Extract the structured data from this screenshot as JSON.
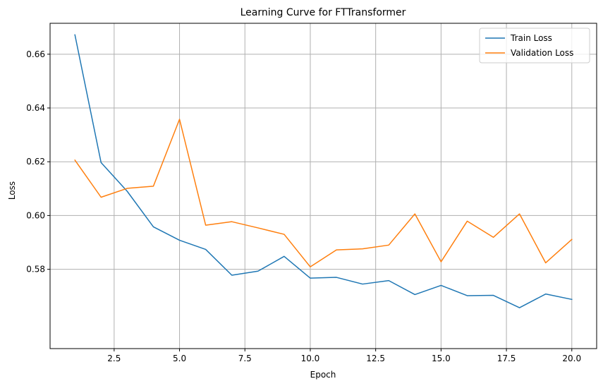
{
  "chart_data": {
    "type": "line",
    "title": "Learning Curve for FTTransformer",
    "xlabel": "Epoch",
    "ylabel": "Loss",
    "xlim": [
      0.05,
      20.95
    ],
    "ylim": [
      0.5505,
      0.6715
    ],
    "x_ticks": [
      2.5,
      5.0,
      7.5,
      10.0,
      12.5,
      15.0,
      17.5,
      20.0
    ],
    "x_tick_labels": [
      "2.5",
      "5.0",
      "7.5",
      "10.0",
      "12.5",
      "15.0",
      "17.5",
      "20.0"
    ],
    "y_ticks": [
      0.58,
      0.6,
      0.62,
      0.64,
      0.66
    ],
    "y_tick_labels": [
      "0.58",
      "0.60",
      "0.62",
      "0.64",
      "0.66"
    ],
    "grid": true,
    "legend_position": "top-right",
    "x": [
      1,
      2,
      3,
      4,
      5,
      6,
      7,
      8,
      9,
      10,
      11,
      12,
      13,
      14,
      15,
      16,
      17,
      18,
      19,
      20
    ],
    "series": [
      {
        "name": "Train Loss",
        "color": "#1f77b4",
        "values": [
          0.6672,
          0.6197,
          0.609,
          0.5958,
          0.5908,
          0.5874,
          0.5778,
          0.5793,
          0.5848,
          0.5767,
          0.577,
          0.5745,
          0.5758,
          0.5706,
          0.574,
          0.5702,
          0.5703,
          0.5657,
          0.5708,
          0.5688
        ]
      },
      {
        "name": "Validation Loss",
        "color": "#ff7f0e",
        "values": [
          0.6206,
          0.6068,
          0.6101,
          0.6109,
          0.6358,
          0.5964,
          0.5977,
          0.5954,
          0.593,
          0.5809,
          0.5872,
          0.5876,
          0.589,
          0.6006,
          0.5828,
          0.5979,
          0.5919,
          0.6006,
          0.5824,
          0.5911
        ]
      }
    ]
  }
}
